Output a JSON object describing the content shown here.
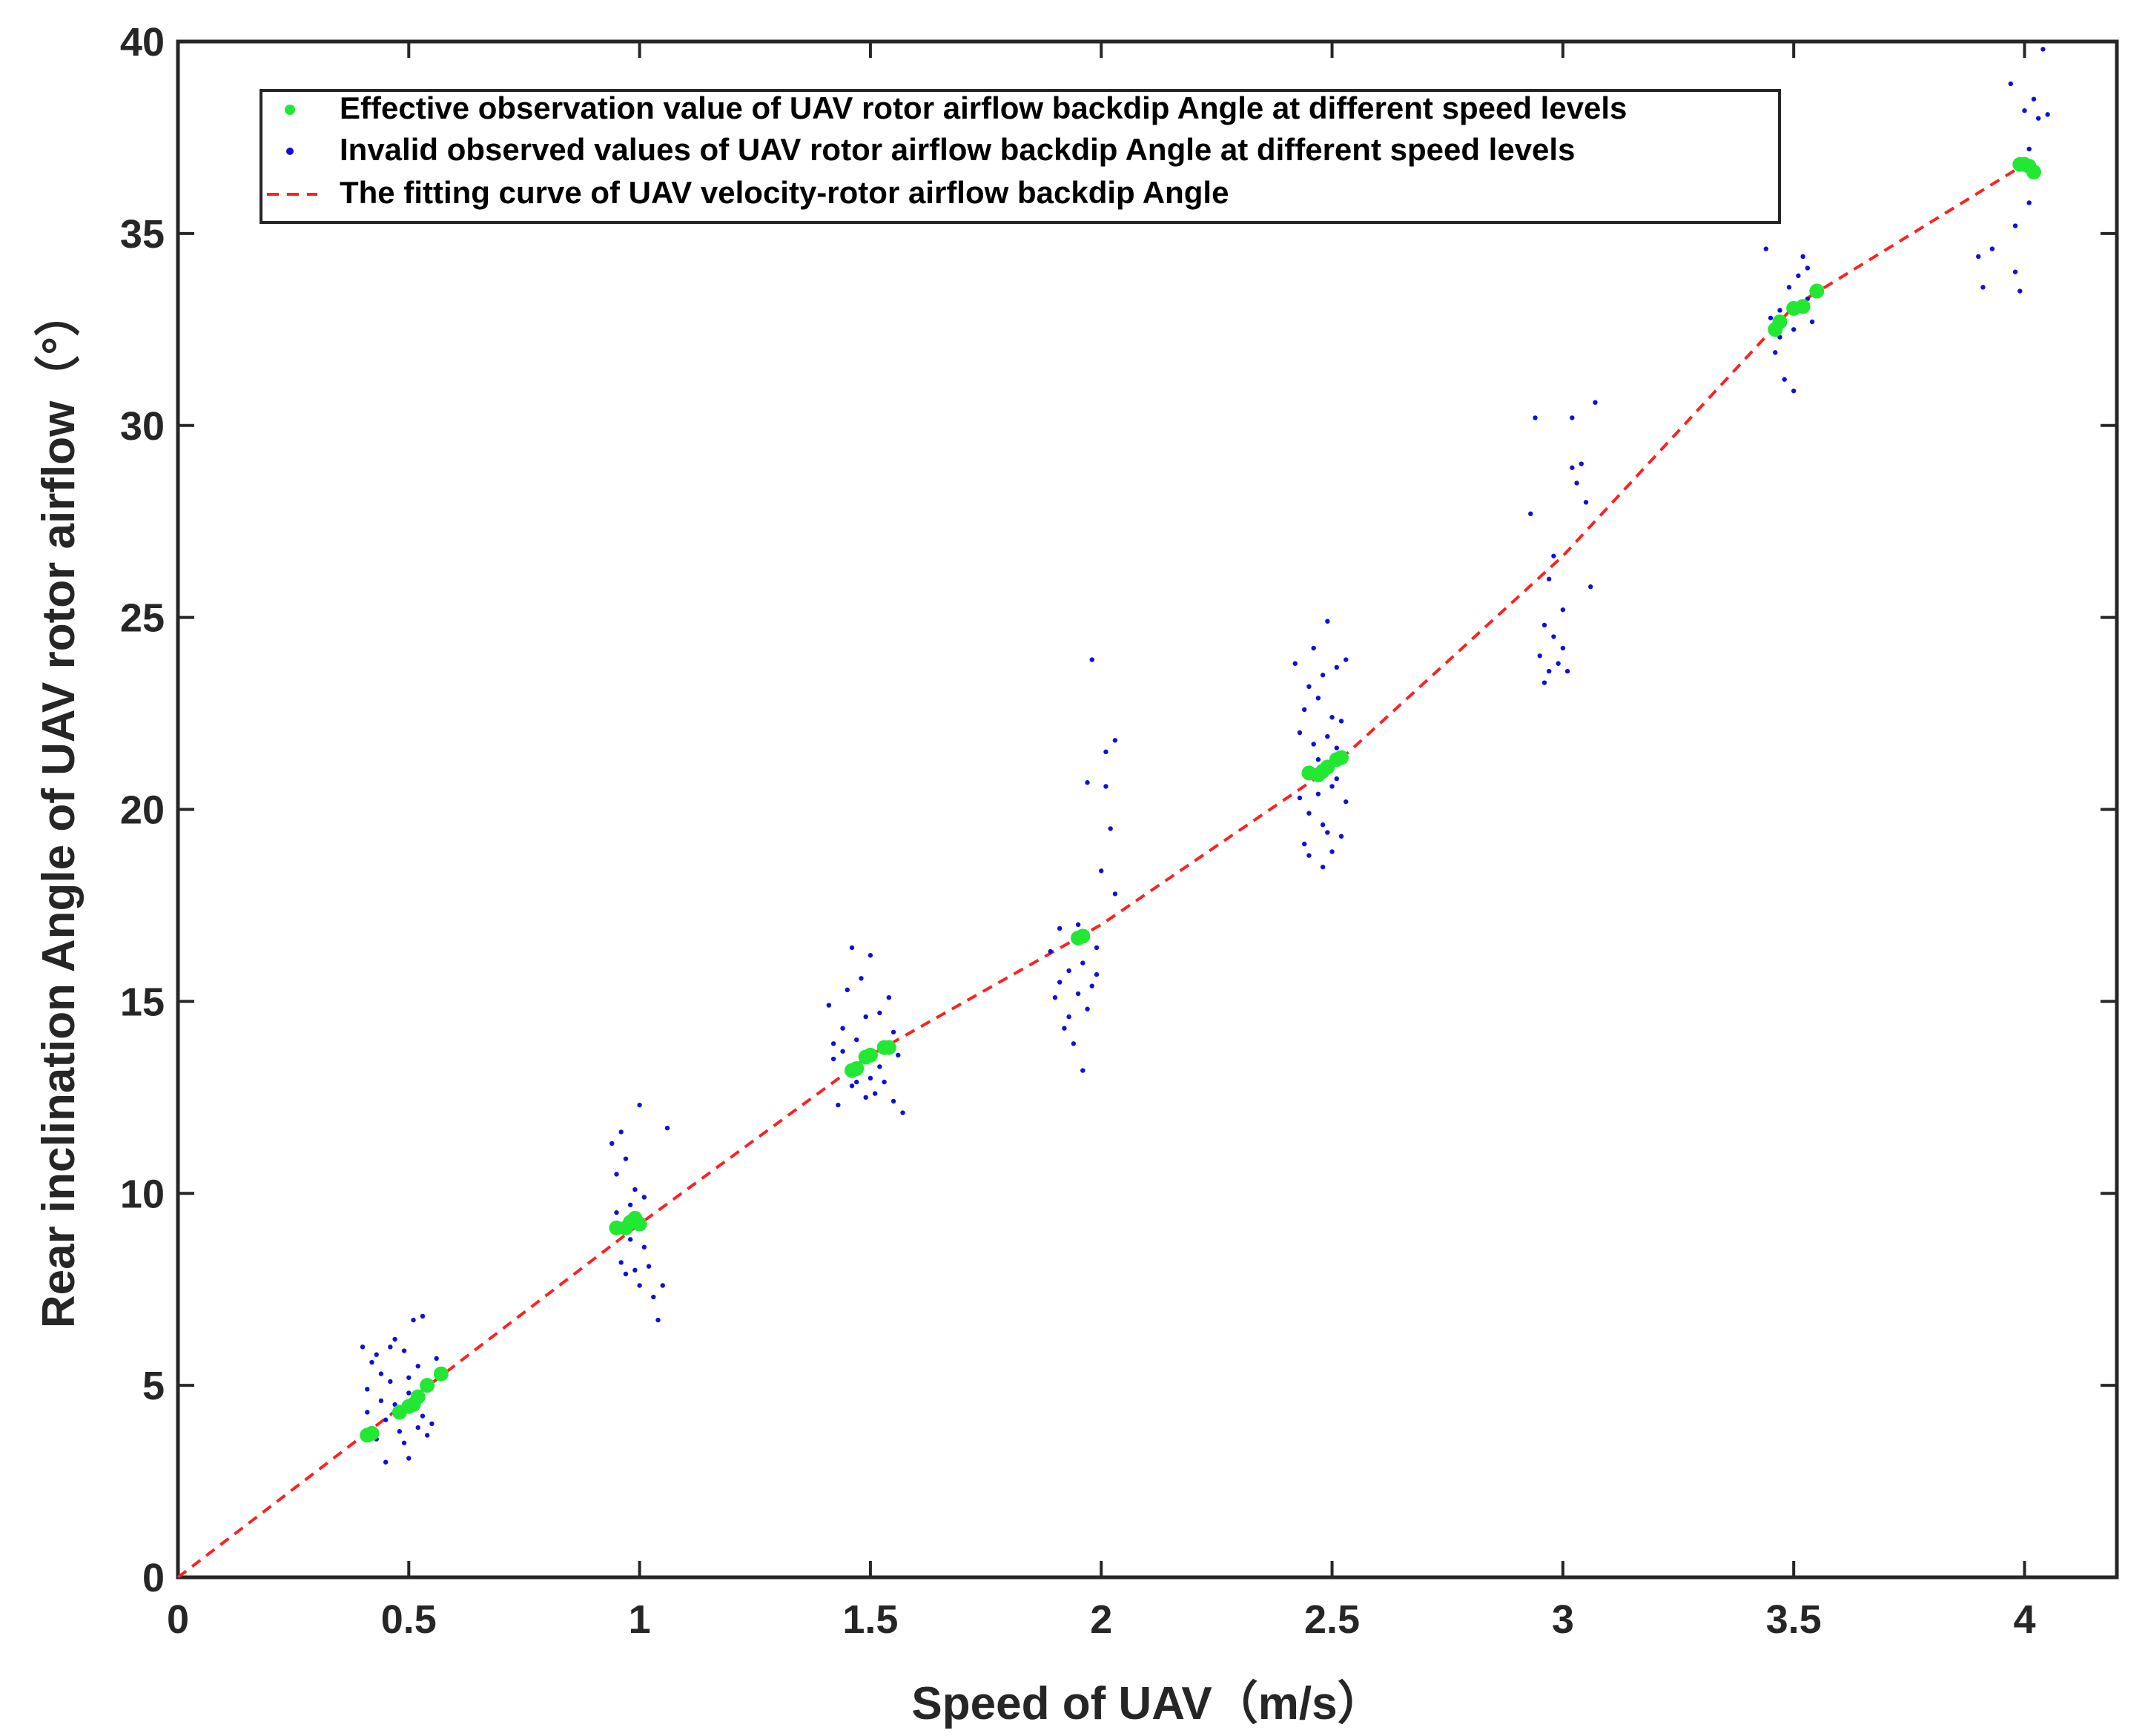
{
  "chart_data": {
    "type": "scatter",
    "xlabel": "Speed of UAV（m/s）",
    "ylabel": "Rear inclination Angle of UAV rotor airflow（°）",
    "xlim": [
      0,
      4.2
    ],
    "ylim": [
      0,
      40
    ],
    "xticks": [
      "0",
      "0.5",
      "1",
      "1.5",
      "2",
      "2.5",
      "3",
      "3.5",
      "4"
    ],
    "yticks": [
      "0",
      "5",
      "10",
      "15",
      "20",
      "25",
      "30",
      "35",
      "40"
    ],
    "grid": false,
    "legend_position": "top-left",
    "series": [
      {
        "name": "Effective observation value of UAV rotor airflow backdip Angle at different speed levels",
        "color": "#22e834",
        "marker": "circle",
        "points": [
          [
            0.41,
            3.7
          ],
          [
            0.42,
            3.75
          ],
          [
            0.48,
            4.3
          ],
          [
            0.5,
            4.45
          ],
          [
            0.51,
            4.5
          ],
          [
            0.52,
            4.7
          ],
          [
            0.54,
            5.0
          ],
          [
            0.57,
            5.3
          ],
          [
            0.95,
            9.1
          ],
          [
            0.97,
            9.1
          ],
          [
            0.98,
            9.25
          ],
          [
            0.99,
            9.35
          ],
          [
            1.0,
            9.2
          ],
          [
            1.46,
            13.2
          ],
          [
            1.47,
            13.25
          ],
          [
            1.49,
            13.55
          ],
          [
            1.5,
            13.6
          ],
          [
            1.53,
            13.8
          ],
          [
            1.54,
            13.8
          ],
          [
            1.95,
            16.65
          ],
          [
            1.96,
            16.7
          ],
          [
            2.45,
            20.95
          ],
          [
            2.47,
            20.9
          ],
          [
            2.48,
            21.0
          ],
          [
            2.49,
            21.1
          ],
          [
            2.51,
            21.3
          ],
          [
            2.52,
            21.35
          ],
          [
            3.46,
            32.5
          ],
          [
            3.47,
            32.7
          ],
          [
            3.5,
            33.05
          ],
          [
            3.52,
            33.1
          ],
          [
            3.55,
            33.5
          ],
          [
            3.99,
            36.8
          ],
          [
            4.0,
            36.8
          ],
          [
            4.01,
            36.75
          ],
          [
            4.02,
            36.6
          ]
        ]
      },
      {
        "name": "Invalid observed values of UAV rotor airflow backdip Angle at different speed levels",
        "color": "#1010d8",
        "marker": "dot",
        "points": [
          [
            0.4,
            6.0
          ],
          [
            0.41,
            4.9
          ],
          [
            0.42,
            5.6
          ],
          [
            0.43,
            3.6
          ],
          [
            0.44,
            5.3
          ],
          [
            0.45,
            3.0
          ],
          [
            0.45,
            4.1
          ],
          [
            0.46,
            5.1
          ],
          [
            0.47,
            4.5
          ],
          [
            0.47,
            6.2
          ],
          [
            0.48,
            3.8
          ],
          [
            0.49,
            5.9
          ],
          [
            0.5,
            3.1
          ],
          [
            0.5,
            4.8
          ],
          [
            0.51,
            6.7
          ],
          [
            0.52,
            3.9
          ],
          [
            0.52,
            5.5
          ],
          [
            0.53,
            4.2
          ],
          [
            0.53,
            6.8
          ],
          [
            0.55,
            4.0
          ],
          [
            0.56,
            5.7
          ],
          [
            0.41,
            4.3
          ],
          [
            0.44,
            4.6
          ],
          [
            0.49,
            3.5
          ],
          [
            0.54,
            3.7
          ],
          [
            0.46,
            6.0
          ],
          [
            0.5,
            5.2
          ],
          [
            0.43,
            5.8
          ],
          [
            0.94,
            11.3
          ],
          [
            0.95,
            10.5
          ],
          [
            0.96,
            8.2
          ],
          [
            0.96,
            11.6
          ],
          [
            0.97,
            7.9
          ],
          [
            0.97,
            10.9
          ],
          [
            0.98,
            8.8
          ],
          [
            0.99,
            8.0
          ],
          [
            0.99,
            10.1
          ],
          [
            1.0,
            7.6
          ],
          [
            1.0,
            12.3
          ],
          [
            1.01,
            8.6
          ],
          [
            1.02,
            8.1
          ],
          [
            1.03,
            7.3
          ],
          [
            1.04,
            6.7
          ],
          [
            1.05,
            7.6
          ],
          [
            1.06,
            11.7
          ],
          [
            0.98,
            9.7
          ],
          [
            1.01,
            9.9
          ],
          [
            0.95,
            9.5
          ],
          [
            1.41,
            14.9
          ],
          [
            1.42,
            13.5
          ],
          [
            1.43,
            12.3
          ],
          [
            1.44,
            14.3
          ],
          [
            1.45,
            15.3
          ],
          [
            1.46,
            12.8
          ],
          [
            1.46,
            16.4
          ],
          [
            1.47,
            14.0
          ],
          [
            1.48,
            15.6
          ],
          [
            1.49,
            12.5
          ],
          [
            1.49,
            14.6
          ],
          [
            1.5,
            13.0
          ],
          [
            1.5,
            16.2
          ],
          [
            1.51,
            12.6
          ],
          [
            1.52,
            14.7
          ],
          [
            1.53,
            12.9
          ],
          [
            1.54,
            15.1
          ],
          [
            1.55,
            12.4
          ],
          [
            1.56,
            13.6
          ],
          [
            1.57,
            12.1
          ],
          [
            1.42,
            13.9
          ],
          [
            1.47,
            12.9
          ],
          [
            1.52,
            13.3
          ],
          [
            1.44,
            13.7
          ],
          [
            1.55,
            14.2
          ],
          [
            1.89,
            16.3
          ],
          [
            1.9,
            15.1
          ],
          [
            1.91,
            16.9
          ],
          [
            1.92,
            14.3
          ],
          [
            1.93,
            15.8
          ],
          [
            1.94,
            13.9
          ],
          [
            1.95,
            17.0
          ],
          [
            1.95,
            15.2
          ],
          [
            1.96,
            13.2
          ],
          [
            1.96,
            16.0
          ],
          [
            1.97,
            14.8
          ],
          [
            1.97,
            20.7
          ],
          [
            1.98,
            15.4
          ],
          [
            1.98,
            23.9
          ],
          [
            1.99,
            16.4
          ],
          [
            2.0,
            18.4
          ],
          [
            2.01,
            20.6
          ],
          [
            2.01,
            21.5
          ],
          [
            2.02,
            19.5
          ],
          [
            2.03,
            17.8
          ],
          [
            2.03,
            21.8
          ],
          [
            1.93,
            14.6
          ],
          [
            1.99,
            15.7
          ],
          [
            1.91,
            15.5
          ],
          [
            2.42,
            23.8
          ],
          [
            2.43,
            20.3
          ],
          [
            2.44,
            22.6
          ],
          [
            2.44,
            19.1
          ],
          [
            2.45,
            23.2
          ],
          [
            2.45,
            18.8
          ],
          [
            2.46,
            21.7
          ],
          [
            2.46,
            24.2
          ],
          [
            2.47,
            20.4
          ],
          [
            2.47,
            22.9
          ],
          [
            2.48,
            18.5
          ],
          [
            2.48,
            23.5
          ],
          [
            2.48,
            19.6
          ],
          [
            2.49,
            21.9
          ],
          [
            2.49,
            24.9
          ],
          [
            2.5,
            20.6
          ],
          [
            2.5,
            22.4
          ],
          [
            2.5,
            18.9
          ],
          [
            2.51,
            23.7
          ],
          [
            2.51,
            21.6
          ],
          [
            2.52,
            19.3
          ],
          [
            2.52,
            22.3
          ],
          [
            2.53,
            20.2
          ],
          [
            2.53,
            23.9
          ],
          [
            2.43,
            22.0
          ],
          [
            2.47,
            21.3
          ],
          [
            2.51,
            20.8
          ],
          [
            2.45,
            19.9
          ],
          [
            2.49,
            19.4
          ],
          [
            2.93,
            27.7
          ],
          [
            2.94,
            30.2
          ],
          [
            2.95,
            24.0
          ],
          [
            2.96,
            23.3
          ],
          [
            2.97,
            26.0
          ],
          [
            2.97,
            23.6
          ],
          [
            2.98,
            24.5
          ],
          [
            2.98,
            26.6
          ],
          [
            2.99,
            23.8
          ],
          [
            3.0,
            25.2
          ],
          [
            3.0,
            24.2
          ],
          [
            3.01,
            23.6
          ],
          [
            3.02,
            30.2
          ],
          [
            3.03,
            28.5
          ],
          [
            3.04,
            29.0
          ],
          [
            3.05,
            28.0
          ],
          [
            3.06,
            25.8
          ],
          [
            3.07,
            30.6
          ],
          [
            2.96,
            24.8
          ],
          [
            3.02,
            28.9
          ],
          [
            3.44,
            34.6
          ],
          [
            3.45,
            32.8
          ],
          [
            3.46,
            31.9
          ],
          [
            3.47,
            32.3
          ],
          [
            3.48,
            31.2
          ],
          [
            3.49,
            33.6
          ],
          [
            3.5,
            30.9
          ],
          [
            3.51,
            33.9
          ],
          [
            3.52,
            34.4
          ],
          [
            3.53,
            33.3
          ],
          [
            3.54,
            32.7
          ],
          [
            3.47,
            33.0
          ],
          [
            3.5,
            32.5
          ],
          [
            3.53,
            34.1
          ],
          [
            3.9,
            34.4
          ],
          [
            3.91,
            33.6
          ],
          [
            3.97,
            38.9
          ],
          [
            3.98,
            34.0
          ],
          [
            3.99,
            33.5
          ],
          [
            4.0,
            38.2
          ],
          [
            4.01,
            37.2
          ],
          [
            4.02,
            38.5
          ],
          [
            4.03,
            38.0
          ],
          [
            4.04,
            39.8
          ],
          [
            4.05,
            38.1
          ],
          [
            3.98,
            35.2
          ],
          [
            4.01,
            35.8
          ],
          [
            3.93,
            34.6
          ]
        ]
      },
      {
        "name": "The fitting curve of UAV velocity-rotor airflow backdip Angle",
        "color": "#ff2020",
        "marker": "dashed-line",
        "points": [
          [
            0,
            0
          ],
          [
            0.5,
            4.6
          ],
          [
            1,
            9.2
          ],
          [
            1.5,
            13.6
          ],
          [
            2,
            17.0
          ],
          [
            2.5,
            21.1
          ],
          [
            3,
            26.6
          ],
          [
            3.5,
            33.1
          ],
          [
            4,
            36.8
          ]
        ]
      }
    ]
  }
}
